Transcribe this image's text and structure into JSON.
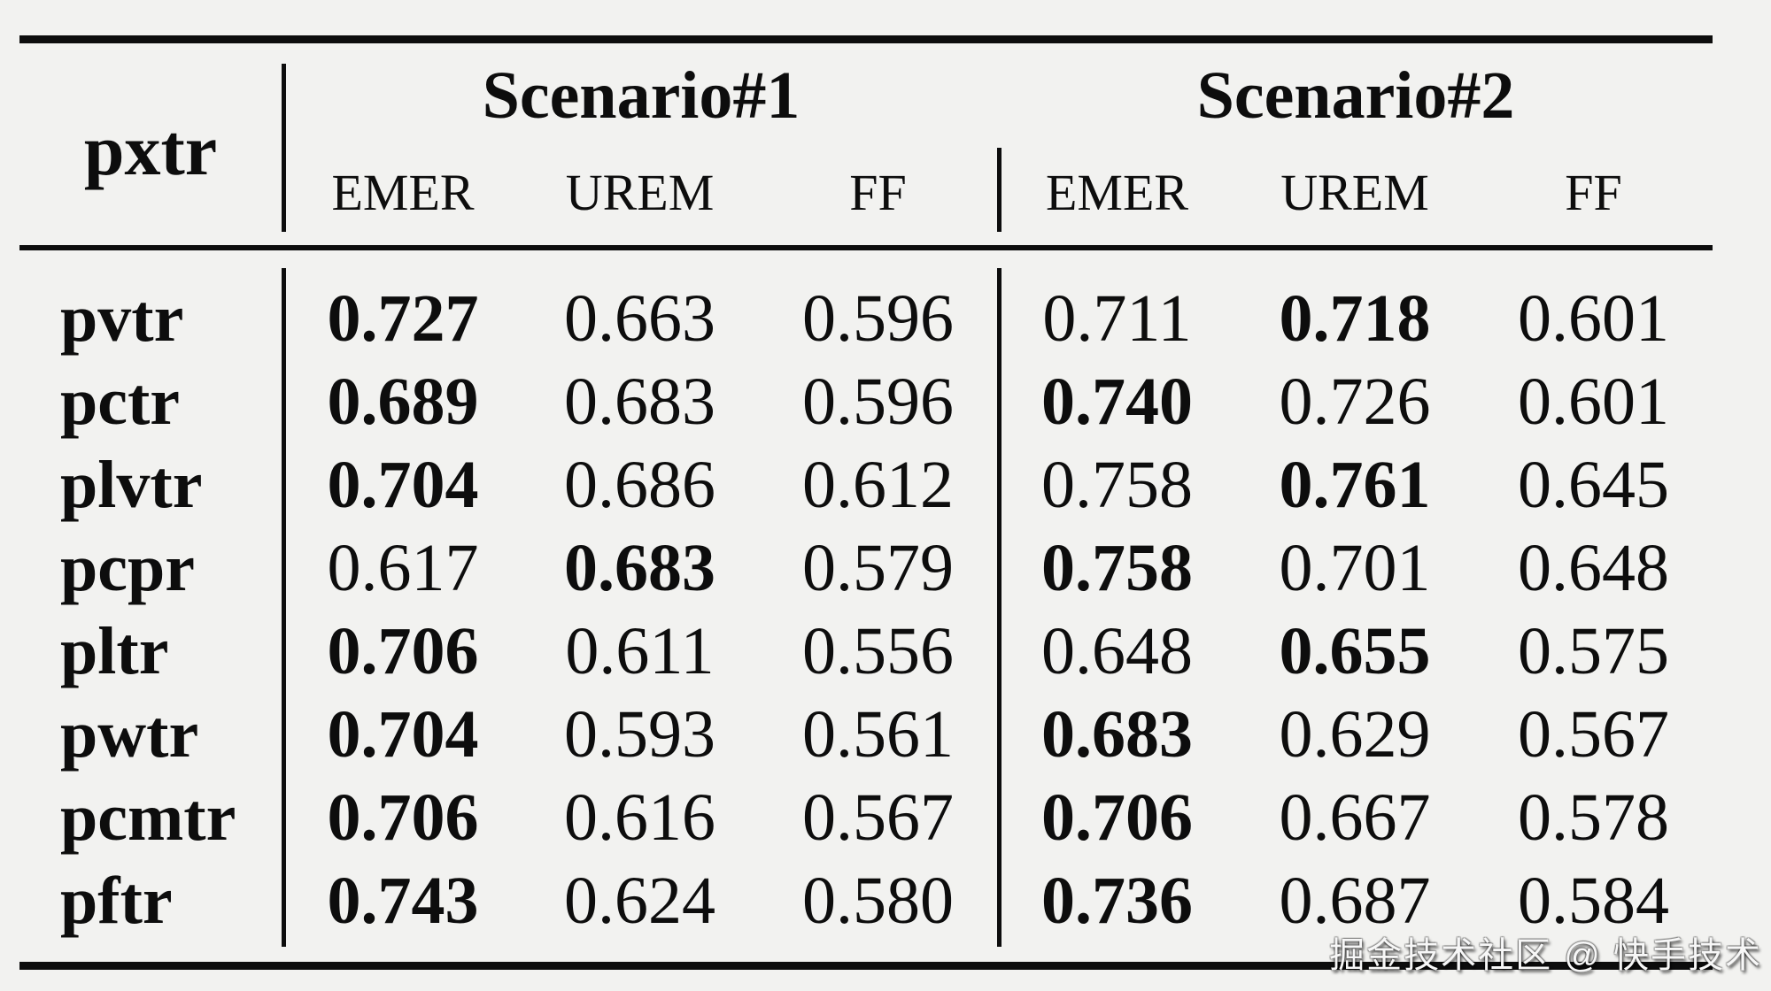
{
  "colors": {
    "background": "#f2f2f0",
    "ink": "#0d0d0d",
    "watermark": "#f7f7f7"
  },
  "table": {
    "corner_label": "pxtr",
    "groups": [
      {
        "label": "Scenario#1",
        "subcolumns": [
          "EMER",
          "UREM",
          "FF"
        ]
      },
      {
        "label": "Scenario#2",
        "subcolumns": [
          "EMER",
          "UREM",
          "FF"
        ]
      }
    ],
    "rows": [
      {
        "label": "pvtr",
        "cells": [
          {
            "value": "0.727",
            "bold": true
          },
          {
            "value": "0.663",
            "bold": false
          },
          {
            "value": "0.596",
            "bold": false
          },
          {
            "value": "0.711",
            "bold": false
          },
          {
            "value": "0.718",
            "bold": true
          },
          {
            "value": "0.601",
            "bold": false
          }
        ]
      },
      {
        "label": "pctr",
        "cells": [
          {
            "value": "0.689",
            "bold": true
          },
          {
            "value": "0.683",
            "bold": false
          },
          {
            "value": "0.596",
            "bold": false
          },
          {
            "value": "0.740",
            "bold": true
          },
          {
            "value": "0.726",
            "bold": false
          },
          {
            "value": "0.601",
            "bold": false
          }
        ]
      },
      {
        "label": "plvtr",
        "cells": [
          {
            "value": "0.704",
            "bold": true
          },
          {
            "value": "0.686",
            "bold": false
          },
          {
            "value": "0.612",
            "bold": false
          },
          {
            "value": "0.758",
            "bold": false
          },
          {
            "value": "0.761",
            "bold": true
          },
          {
            "value": "0.645",
            "bold": false
          }
        ]
      },
      {
        "label": "pcpr",
        "cells": [
          {
            "value": "0.617",
            "bold": false
          },
          {
            "value": "0.683",
            "bold": true
          },
          {
            "value": "0.579",
            "bold": false
          },
          {
            "value": "0.758",
            "bold": true
          },
          {
            "value": "0.701",
            "bold": false
          },
          {
            "value": "0.648",
            "bold": false
          }
        ]
      },
      {
        "label": "pltr",
        "cells": [
          {
            "value": "0.706",
            "bold": true
          },
          {
            "value": "0.611",
            "bold": false
          },
          {
            "value": "0.556",
            "bold": false
          },
          {
            "value": "0.648",
            "bold": false
          },
          {
            "value": "0.655",
            "bold": true
          },
          {
            "value": "0.575",
            "bold": false
          }
        ]
      },
      {
        "label": "pwtr",
        "cells": [
          {
            "value": "0.704",
            "bold": true
          },
          {
            "value": "0.593",
            "bold": false
          },
          {
            "value": "0.561",
            "bold": false
          },
          {
            "value": "0.683",
            "bold": true
          },
          {
            "value": "0.629",
            "bold": false
          },
          {
            "value": "0.567",
            "bold": false
          }
        ]
      },
      {
        "label": "pcmtr",
        "cells": [
          {
            "value": "0.706",
            "bold": true
          },
          {
            "value": "0.616",
            "bold": false
          },
          {
            "value": "0.567",
            "bold": false
          },
          {
            "value": "0.706",
            "bold": true
          },
          {
            "value": "0.667",
            "bold": false
          },
          {
            "value": "0.578",
            "bold": false
          }
        ]
      },
      {
        "label": "pftr",
        "cells": [
          {
            "value": "0.743",
            "bold": true
          },
          {
            "value": "0.624",
            "bold": false
          },
          {
            "value": "0.580",
            "bold": false
          },
          {
            "value": "0.736",
            "bold": true
          },
          {
            "value": "0.687",
            "bold": false
          },
          {
            "value": "0.584",
            "bold": false
          }
        ]
      }
    ]
  },
  "watermark": {
    "text": "掘金技术社区 @ 快手技术"
  }
}
